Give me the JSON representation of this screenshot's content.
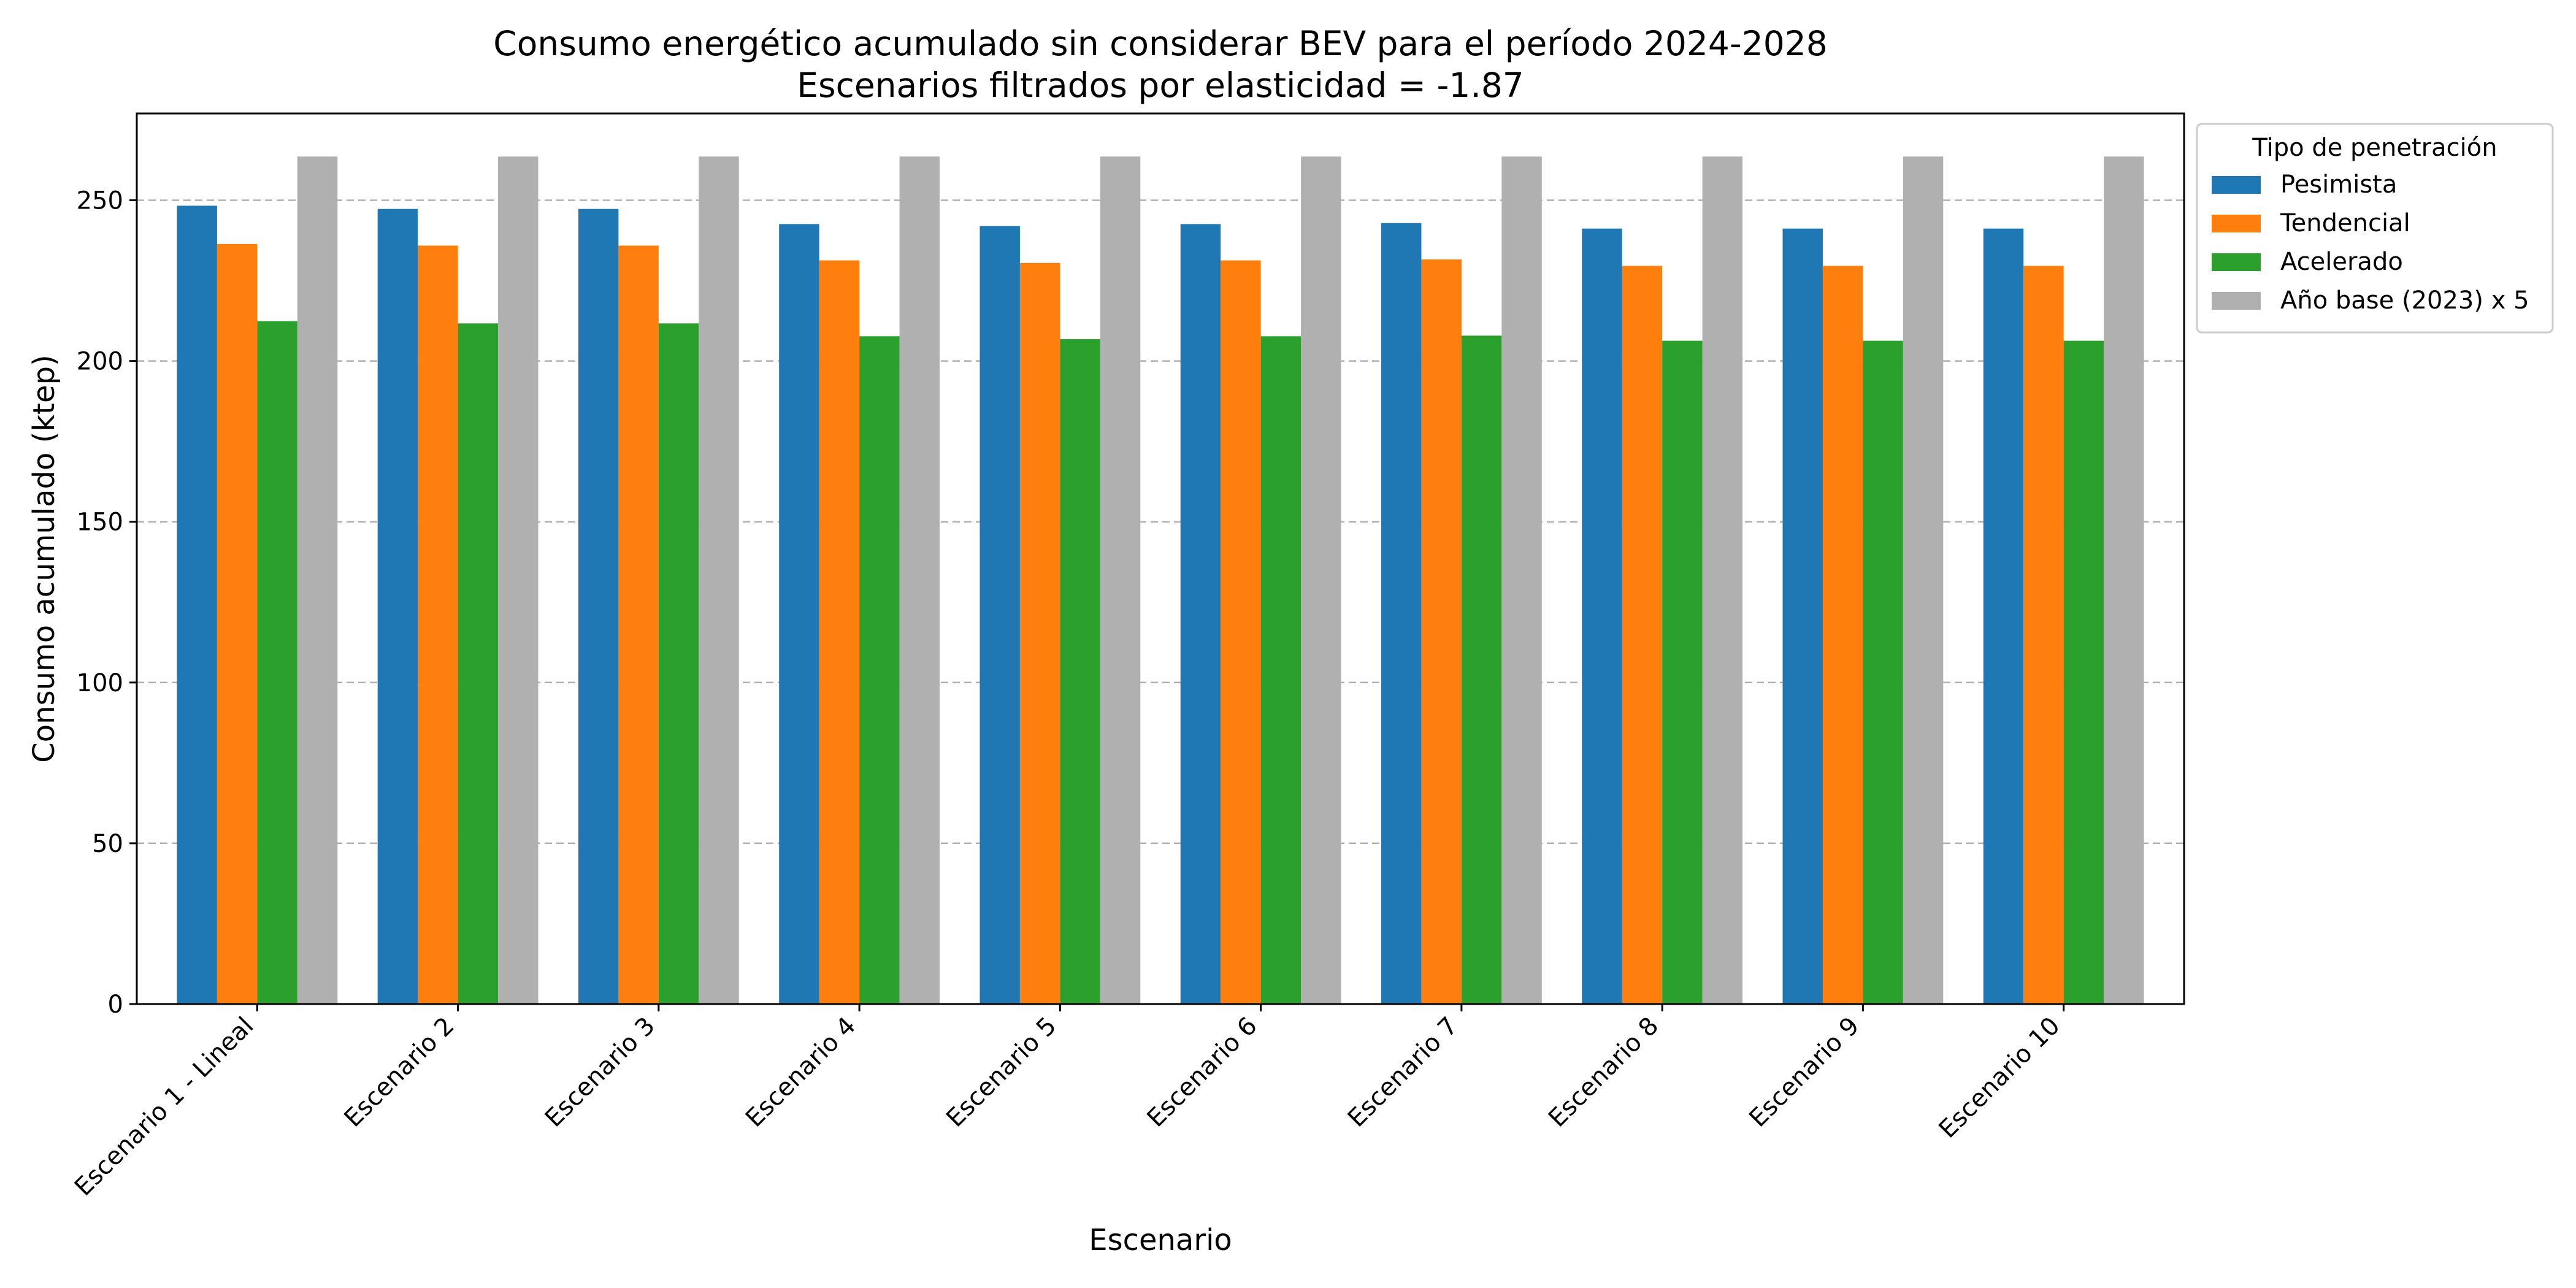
{
  "chart_data": {
    "type": "bar",
    "title_line1": "Consumo energético acumulado sin considerar BEV para el período 2024-2028",
    "title_line2": "Escenarios filtrados por elasticidad = -1.87",
    "xlabel": "Escenario",
    "ylabel": "Consumo acumulado (ktep)",
    "ylim": [
      0,
      277
    ],
    "yticks": [
      0,
      50,
      100,
      150,
      200,
      250
    ],
    "grid": "y-dashed",
    "legend_title": "Tipo de penetración",
    "legend_position": "outside-upper-right",
    "categories": [
      "Escenario 1 - Lineal",
      "Escenario 2",
      "Escenario 3",
      "Escenario 4",
      "Escenario 5",
      "Escenario 6",
      "Escenario 7",
      "Escenario 8",
      "Escenario 9",
      "Escenario 10"
    ],
    "series": [
      {
        "name": "Pesimista",
        "color": "#1f77b4",
        "values": [
          248.3,
          247.3,
          247.3,
          242.6,
          242.0,
          242.6,
          242.9,
          241.2,
          241.2,
          241.2
        ]
      },
      {
        "name": "Tendencial",
        "color": "#ff7f0e",
        "values": [
          236.4,
          235.9,
          235.9,
          231.3,
          230.5,
          231.3,
          231.6,
          229.6,
          229.6,
          229.6
        ]
      },
      {
        "name": "Acelerado",
        "color": "#2ca02c",
        "values": [
          212.4,
          211.7,
          211.7,
          207.7,
          206.8,
          207.7,
          207.9,
          206.3,
          206.3,
          206.3
        ]
      },
      {
        "name": "Año base (2023) x 5",
        "color": "#b0b0b0",
        "values": [
          263.6,
          263.6,
          263.6,
          263.6,
          263.6,
          263.6,
          263.6,
          263.6,
          263.6,
          263.6
        ]
      }
    ]
  }
}
